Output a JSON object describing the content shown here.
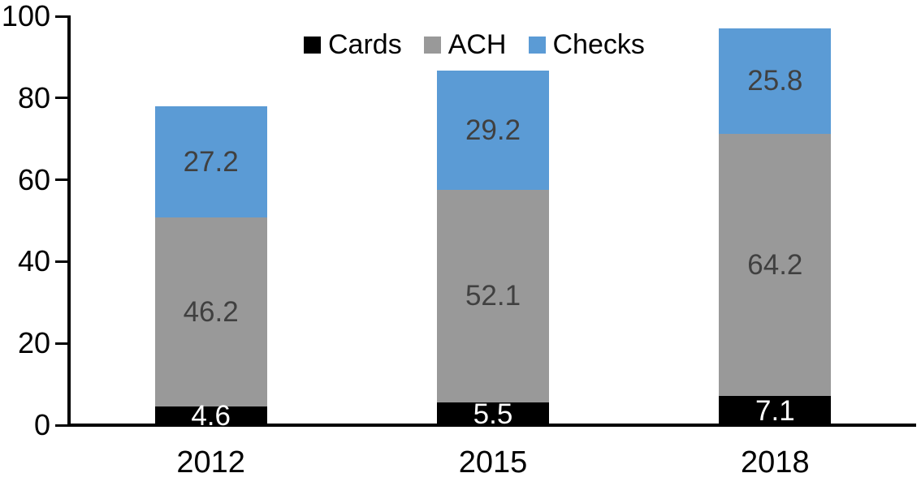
{
  "chart_data": {
    "type": "bar",
    "stacked": true,
    "title": "",
    "categories": [
      "2012",
      "2015",
      "2018"
    ],
    "series": [
      {
        "name": "Cards",
        "color": "#000000",
        "label_color": "#FFFFFF",
        "values": [
          4.6,
          5.5,
          7.1
        ]
      },
      {
        "name": "ACH",
        "color": "#999999",
        "label_color": "#404040",
        "values": [
          46.2,
          52.1,
          64.2
        ]
      },
      {
        "name": "Checks",
        "color": "#5B9BD5",
        "label_color": "#404040",
        "values": [
          27.2,
          29.2,
          25.8
        ]
      }
    ],
    "ylim": [
      0,
      100
    ],
    "y_ticks": [
      0,
      20,
      40,
      60,
      80,
      100
    ],
    "grid": false,
    "legend": {
      "position": "top",
      "entries": [
        "Cards",
        "ACH",
        "Checks"
      ]
    },
    "axis_color": "#000000",
    "background_color": "#FFFFFF"
  }
}
